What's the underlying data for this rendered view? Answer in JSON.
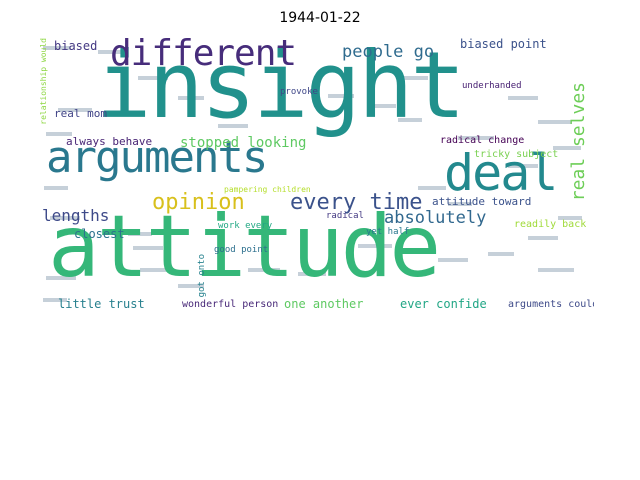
{
  "title": "1944-01-22",
  "words": {
    "attitude": {
      "text": "attitude",
      "color": "#35b779"
    },
    "insight": {
      "text": "insight",
      "color": "#21918c"
    },
    "arguments": {
      "text": "arguments",
      "color": "#2a788e"
    },
    "deal": {
      "text": "deal",
      "color": "#23898e"
    },
    "different": {
      "text": "different",
      "color": "#472d7b"
    },
    "opinion": {
      "text": "opinion",
      "color": "#d8c01c"
    },
    "every_time": {
      "text": "every time",
      "color": "#3b528b"
    },
    "people_go": {
      "text": "people go",
      "color": "#2f6b8e"
    },
    "absolutely": {
      "text": "absolutely",
      "color": "#31688e"
    },
    "real_selves": {
      "text": "real selves",
      "color": "#6ece58"
    },
    "lengths": {
      "text": "lengths",
      "color": "#3e4a89"
    },
    "biased_point": {
      "text": "biased point",
      "color": "#3b528b"
    },
    "biased": {
      "text": "biased",
      "color": "#443983"
    },
    "stopped_looking": {
      "text": "stopped looking",
      "color": "#5ec962"
    },
    "always_behave": {
      "text": "always behave",
      "color": "#482475"
    },
    "closest": {
      "text": "closest",
      "color": "#2c728e"
    },
    "real_mom": {
      "text": "real mom",
      "color": "#414487"
    },
    "little_trust": {
      "text": "little trust",
      "color": "#27808e"
    },
    "one_another": {
      "text": "one another",
      "color": "#5ec962"
    },
    "ever_confide": {
      "text": "ever confide",
      "color": "#21a685"
    },
    "attitude_toward": {
      "text": "attitude toward",
      "color": "#3b528b"
    },
    "radical_change": {
      "text": "radical change",
      "color": "#440154"
    },
    "tricky_subject": {
      "text": "tricky subject",
      "color": "#7ad151"
    },
    "readily_back": {
      "text": "readily back",
      "color": "#a0da39"
    },
    "wonderful_person": {
      "text": "wonderful person",
      "color": "#482878"
    },
    "arguments_could": {
      "text": "arguments could",
      "color": "#3e4a89"
    },
    "pampering_children": {
      "text": "pampering children",
      "color": "#b5de2b"
    },
    "work_every": {
      "text": "work every",
      "color": "#22a884"
    },
    "good_point": {
      "text": "good point",
      "color": "#2d708e"
    },
    "underhanded": {
      "text": "underhanded",
      "color": "#482173"
    },
    "provoke": {
      "text": "provoke",
      "color": "#3f4788"
    },
    "yet_half": {
      "text": "yet half",
      "color": "#2a788e"
    },
    "radical": {
      "text": "radical",
      "color": "#443a83"
    },
    "got_onto": {
      "text": "got onto",
      "color": "#26828e"
    },
    "relationship_would": {
      "text": "relationship would",
      "color": "#8fd744"
    }
  }
}
